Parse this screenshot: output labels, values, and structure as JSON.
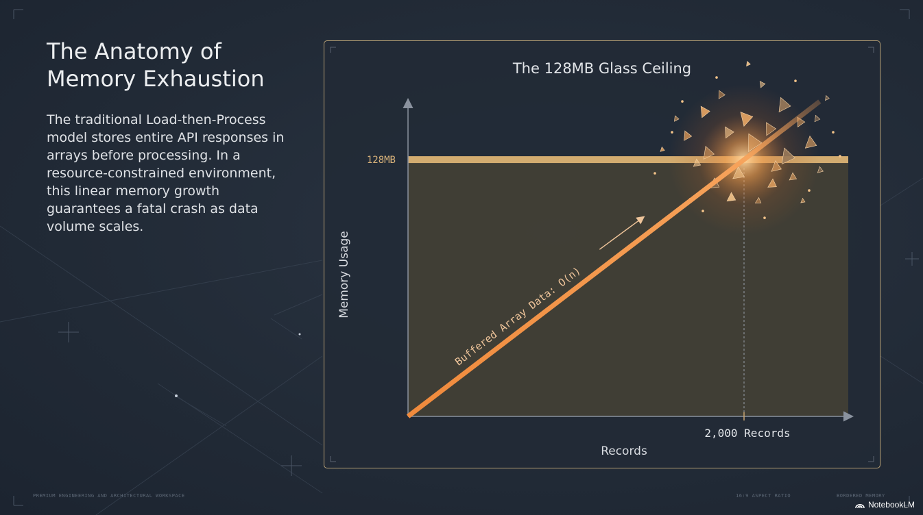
{
  "slide": {
    "title_line1": "The Anatomy of",
    "title_line2": "Memory Exhaustion",
    "body": "The traditional Load-then-Process model stores entire API responses in arrays before processing. In a resource-constrained environment, this linear memory growth guarantees a fatal crash as data volume scales.",
    "footer_left": "PREMIUM ENGINEERING AND ARCHITECTURAL WORKSPACE",
    "footer_mid": "16:9 ASPECT RATIO",
    "footer_right": "BORDERED MEMORY",
    "brand": "NotebookLM",
    "brand_icon": "notebooklm-logo-icon"
  },
  "colors": {
    "background": "#222b37",
    "frame_border": "#b9a276",
    "ceiling": "#d3ac70",
    "line": "#f2914a",
    "text": "#e7e9ec",
    "axis": "#8a929e"
  },
  "chart_data": {
    "type": "line",
    "title": "The 128MB Glass Ceiling",
    "xlabel": "Records",
    "ylabel": "Memory Usage",
    "xlim": [
      0,
      2600
    ],
    "ylim": [
      0,
      155
    ],
    "series": [
      {
        "name": "Buffered Array Data: O(n)",
        "x": [
          0,
          2000,
          2450
        ],
        "y": [
          0,
          128,
          157
        ]
      }
    ],
    "ceiling": {
      "value": 128,
      "label": "128MB"
    },
    "marker": {
      "x": 2000,
      "label": "2,000 Records"
    },
    "annotation": "crash / shatter at intersection",
    "grid": false,
    "legend": "none"
  }
}
